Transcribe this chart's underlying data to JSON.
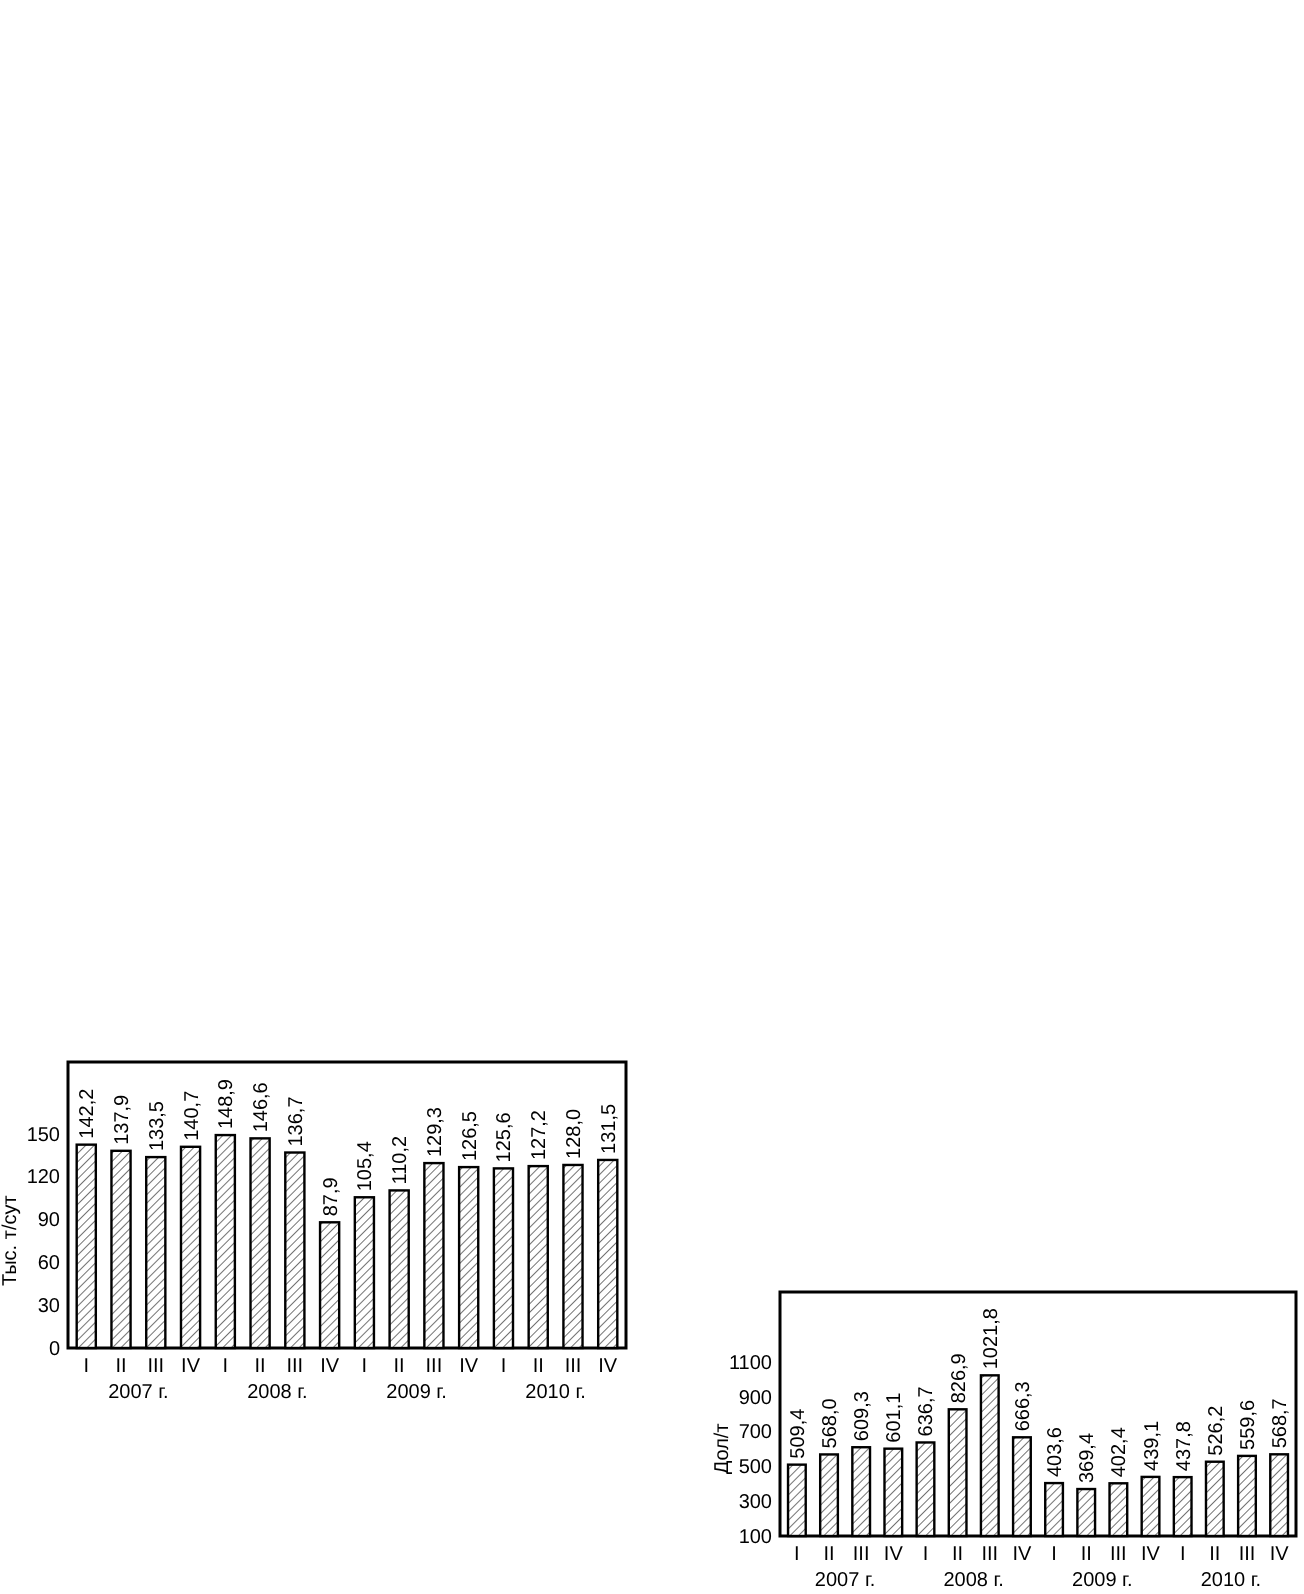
{
  "chart_data": [
    {
      "type": "bar",
      "ylabel": "Тыс. т/сут",
      "categories": [
        "I",
        "II",
        "III",
        "IV",
        "I",
        "II",
        "III",
        "IV",
        "I",
        "II",
        "III",
        "IV",
        "I",
        "II",
        "III",
        "IV"
      ],
      "values": [
        142.2,
        137.9,
        133.5,
        140.7,
        148.9,
        146.6,
        136.7,
        87.9,
        105.4,
        110.2,
        129.3,
        126.5,
        125.6,
        127.2,
        128.0,
        131.5
      ],
      "value_labels": [
        "142,2",
        "137,9",
        "133,5",
        "140,7",
        "148,9",
        "146,6",
        "136,7",
        "87,9",
        "105,4",
        "110,2",
        "129,3",
        "126,5",
        "125,6",
        "127,2",
        "128,0",
        "131,5"
      ],
      "color": "#000000",
      "ylim": [
        0,
        200
      ],
      "yticks": [
        0,
        30,
        60,
        90,
        120,
        150
      ],
      "grid": false,
      "annotations": [
        "2007 г.",
        "2008 г.",
        "2009 г.",
        "2010 г."
      ]
    },
    {
      "type": "bar",
      "ylabel": "Дол/т",
      "categories": [
        "I",
        "II",
        "III",
        "IV",
        "I",
        "II",
        "III",
        "IV",
        "I",
        "II",
        "III",
        "IV",
        "I",
        "II",
        "III",
        "IV"
      ],
      "values": [
        509.4,
        568.0,
        609.3,
        601.1,
        636.7,
        826.9,
        1021.8,
        666.3,
        403.6,
        369.4,
        402.4,
        439.1,
        437.8,
        526.2,
        559.6,
        568.7
      ],
      "value_labels": [
        "509,4",
        "568,0",
        "609,3",
        "601,1",
        "636,7",
        "826,9",
        "1021,8",
        "666,3",
        "403,6",
        "369,4",
        "402,4",
        "439,1",
        "437,8",
        "526,2",
        "559,6",
        "568,7"
      ],
      "color": "#000000",
      "ylim": [
        100,
        1500
      ],
      "yticks": [
        100,
        300,
        500,
        700,
        900,
        1100
      ],
      "grid": false,
      "annotations": [
        "2007 г.",
        "2008 г.",
        "2009 г.",
        "2010 г."
      ]
    }
  ]
}
